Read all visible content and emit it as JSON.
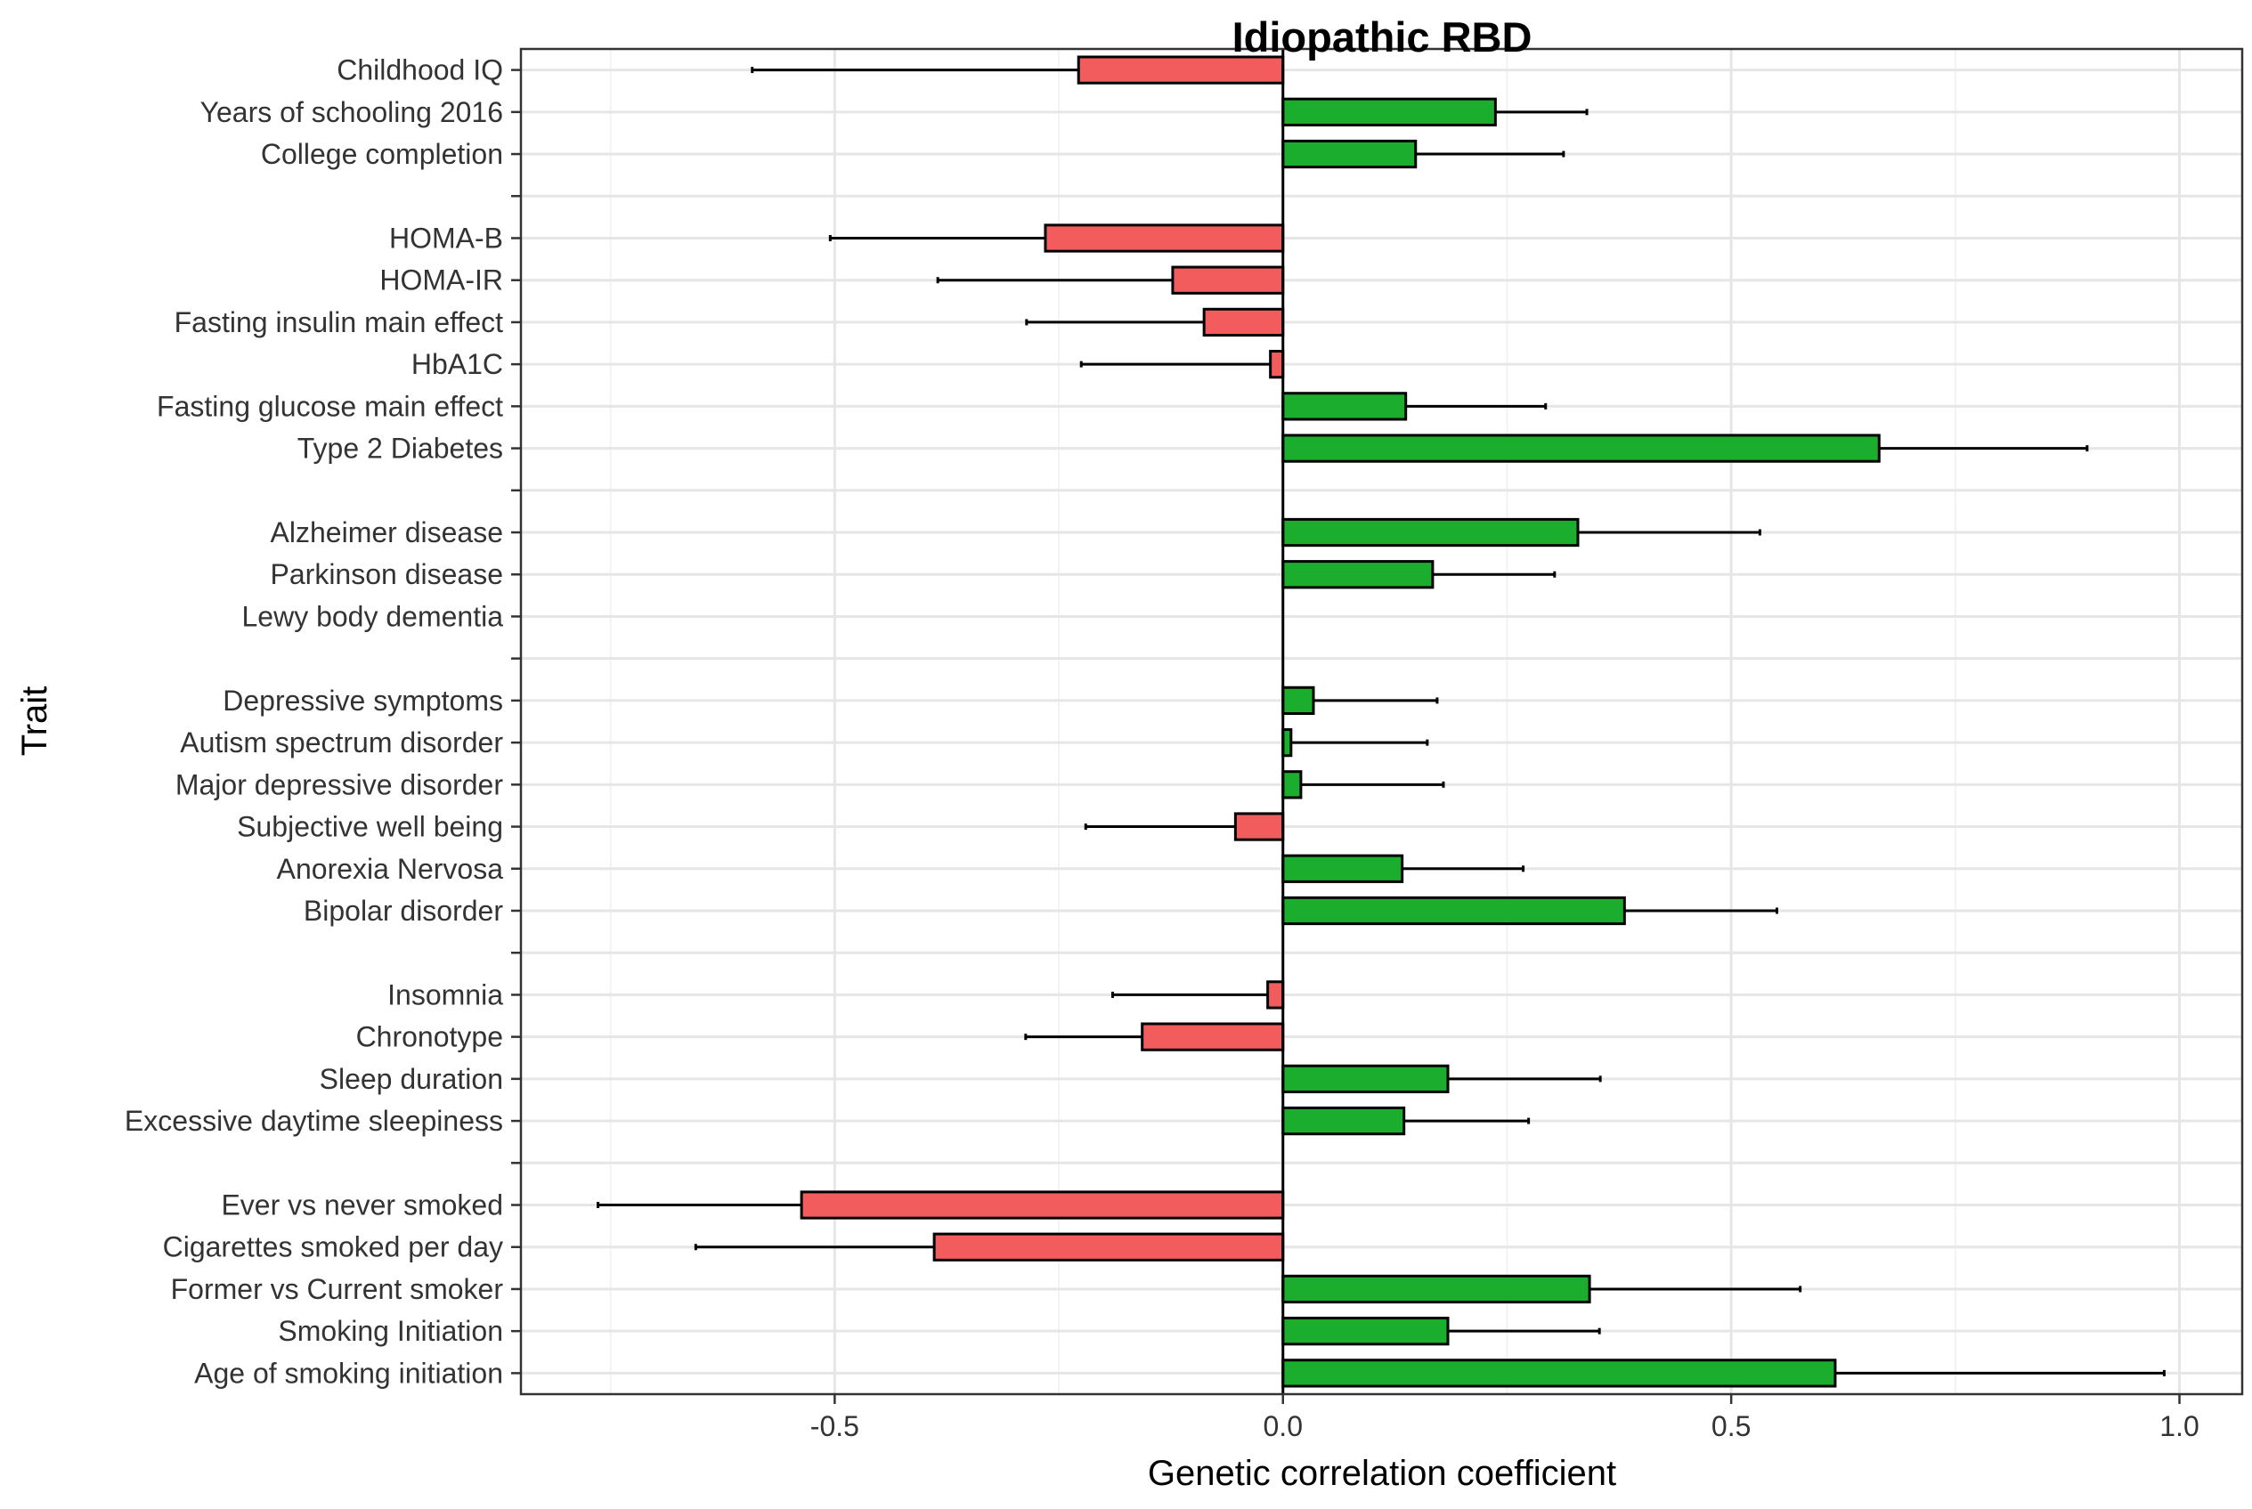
{
  "chart_data": {
    "type": "bar",
    "orientation": "horizontal",
    "title": "Idiopathic RBD",
    "xlabel": "Genetic correlation coefficient",
    "ylabel": "Trait",
    "xlim": [
      -0.85,
      1.07
    ],
    "xticks": [
      -0.5,
      0.0,
      0.5,
      1.0
    ],
    "xtick_labels": [
      "-0.5",
      "0.0",
      "0.5",
      "1.0"
    ],
    "grid": true,
    "colors": {
      "negative": "#f25c5c",
      "positive": "#1aad2e"
    },
    "categories": [
      "Childhood IQ",
      "Years of schooling 2016",
      "College completion",
      "",
      "HOMA-B",
      "HOMA-IR",
      "Fasting insulin main effect",
      "HbA1C",
      "Fasting glucose main effect",
      "Type 2 Diabetes",
      "",
      "Alzheimer disease",
      "Parkinson disease",
      "Lewy body dementia",
      "",
      "Depressive symptoms",
      "Autism spectrum disorder",
      "Major depressive disorder",
      "Subjective well being",
      "Anorexia Nervosa",
      "Bipolar disorder",
      "",
      "Insomnia",
      "Chronotype",
      "Sleep duration",
      "Excessive daytime sleepiness",
      "",
      "Ever vs never smoked",
      "Cigarettes smoked per day",
      "Former vs Current smoker",
      "Smoking Initiation",
      "Age of smoking initiation"
    ],
    "values": [
      -0.228,
      0.237,
      0.148,
      null,
      -0.265,
      -0.123,
      -0.088,
      -0.014,
      0.137,
      0.665,
      null,
      0.329,
      0.167,
      null,
      null,
      0.034,
      0.009,
      0.02,
      -0.053,
      0.133,
      0.381,
      null,
      -0.017,
      -0.157,
      0.184,
      0.135,
      null,
      -0.537,
      -0.389,
      0.342,
      0.184,
      0.616
    ],
    "lower": [
      -0.592,
      null,
      null,
      null,
      -0.505,
      -0.385,
      -0.286,
      -0.225,
      null,
      null,
      null,
      null,
      null,
      null,
      null,
      null,
      null,
      null,
      -0.22,
      null,
      null,
      null,
      -0.19,
      -0.287,
      null,
      null,
      null,
      -0.764,
      -0.655,
      null,
      null,
      null
    ],
    "upper": [
      null,
      0.339,
      0.313,
      null,
      null,
      null,
      null,
      null,
      0.293,
      0.897,
      null,
      0.532,
      0.303,
      null,
      null,
      0.172,
      0.161,
      0.179,
      null,
      0.268,
      0.551,
      null,
      null,
      null,
      0.354,
      0.274,
      null,
      null,
      null,
      0.577,
      0.353,
      0.983
    ]
  }
}
